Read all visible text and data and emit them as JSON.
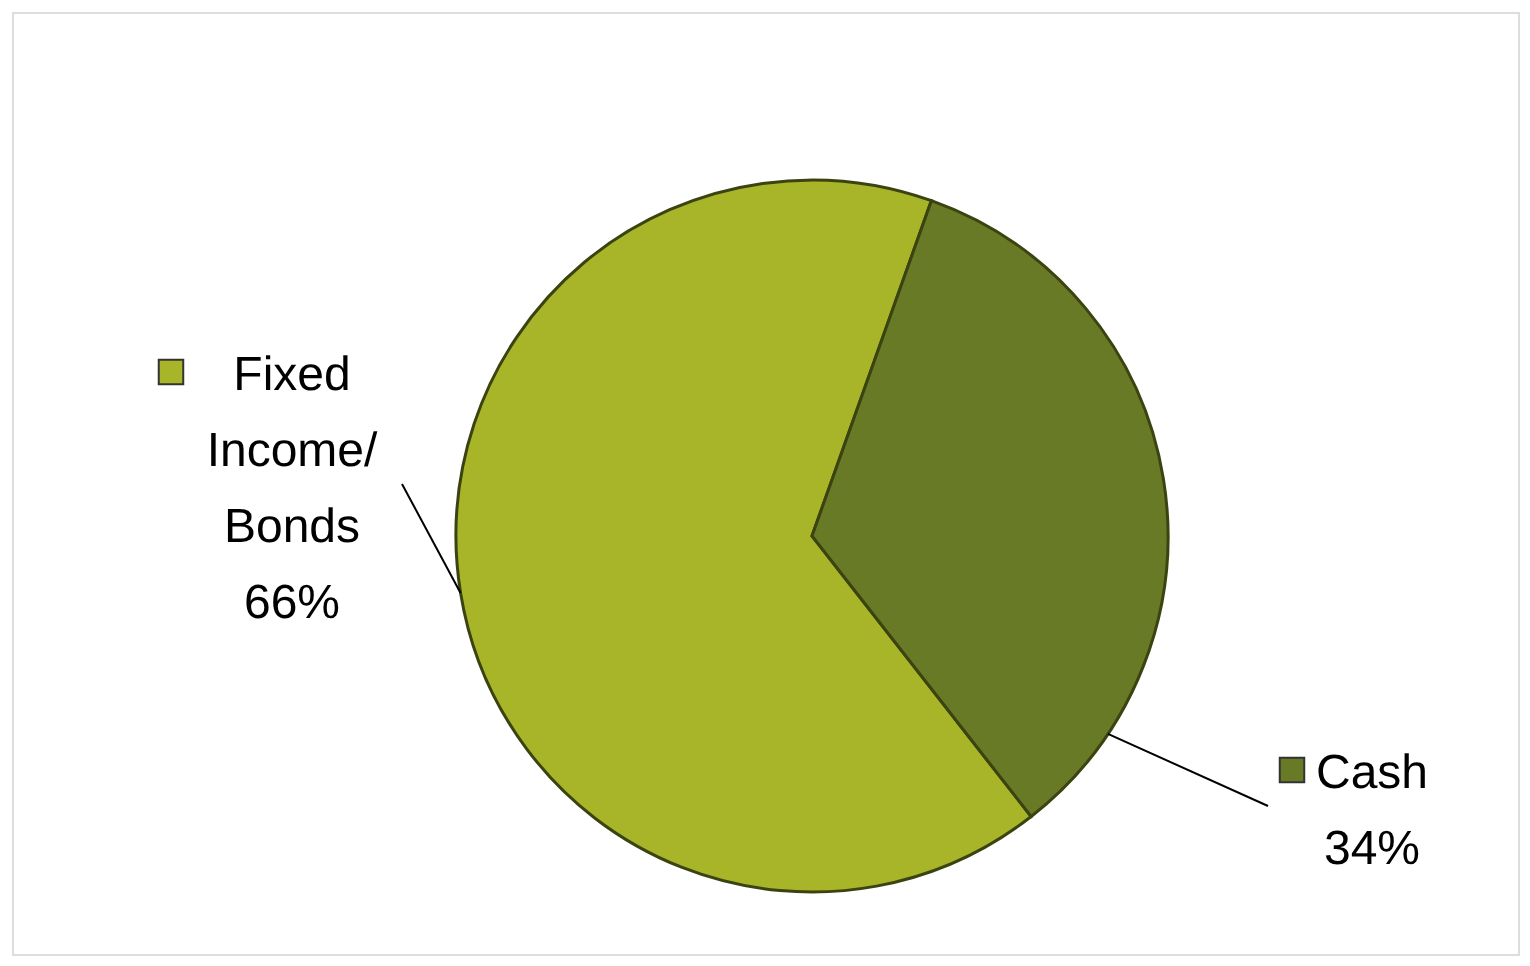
{
  "chart_data": {
    "type": "pie",
    "categories": [
      "Fixed Income/Bonds",
      "Cash"
    ],
    "values": [
      66,
      34
    ],
    "colors": [
      "#a9b529",
      "#687a26"
    ],
    "value_labels": [
      "66%",
      "34%"
    ],
    "legend": "left"
  }
}
